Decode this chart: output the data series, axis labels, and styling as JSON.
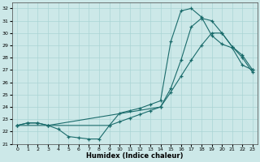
{
  "xlabel": "Humidex (Indice chaleur)",
  "bg_color": "#cce8e8",
  "line_color": "#1a6b6b",
  "grid_color": "#aad4d4",
  "xlim": [
    -0.5,
    23.5
  ],
  "ylim": [
    21,
    32.5
  ],
  "xticks": [
    0,
    1,
    2,
    3,
    4,
    5,
    6,
    7,
    8,
    9,
    10,
    11,
    12,
    13,
    14,
    15,
    16,
    17,
    18,
    19,
    20,
    21,
    22,
    23
  ],
  "yticks": [
    21,
    22,
    23,
    24,
    25,
    26,
    27,
    28,
    29,
    30,
    31,
    32
  ],
  "line1_x": [
    0,
    1,
    2,
    3,
    4,
    5,
    6,
    7,
    8,
    9,
    10,
    11,
    12,
    13,
    14,
    15,
    16,
    17,
    18,
    19,
    20,
    21,
    22,
    23
  ],
  "line1_y": [
    22.5,
    22.7,
    22.7,
    22.5,
    22.2,
    21.6,
    21.5,
    21.4,
    21.4,
    22.5,
    23.5,
    23.7,
    23.9,
    24.2,
    24.5,
    29.3,
    31.8,
    32.0,
    31.3,
    29.8,
    29.1,
    28.8,
    27.4,
    27.0
  ],
  "line2_x": [
    0,
    1,
    2,
    3,
    9,
    10,
    11,
    12,
    13,
    14,
    15,
    16,
    17,
    18,
    19,
    20,
    21,
    22,
    23
  ],
  "line2_y": [
    22.5,
    22.7,
    22.7,
    22.5,
    22.5,
    22.8,
    23.1,
    23.4,
    23.7,
    24.0,
    25.5,
    27.8,
    30.5,
    31.2,
    31.0,
    30.0,
    28.9,
    28.0,
    26.8
  ],
  "line3_x": [
    0,
    3,
    14,
    15,
    16,
    17,
    18,
    19,
    20,
    21,
    22,
    23
  ],
  "line3_y": [
    22.5,
    22.5,
    24.0,
    25.2,
    26.5,
    27.8,
    29.0,
    30.0,
    30.0,
    28.9,
    28.2,
    27.0
  ]
}
